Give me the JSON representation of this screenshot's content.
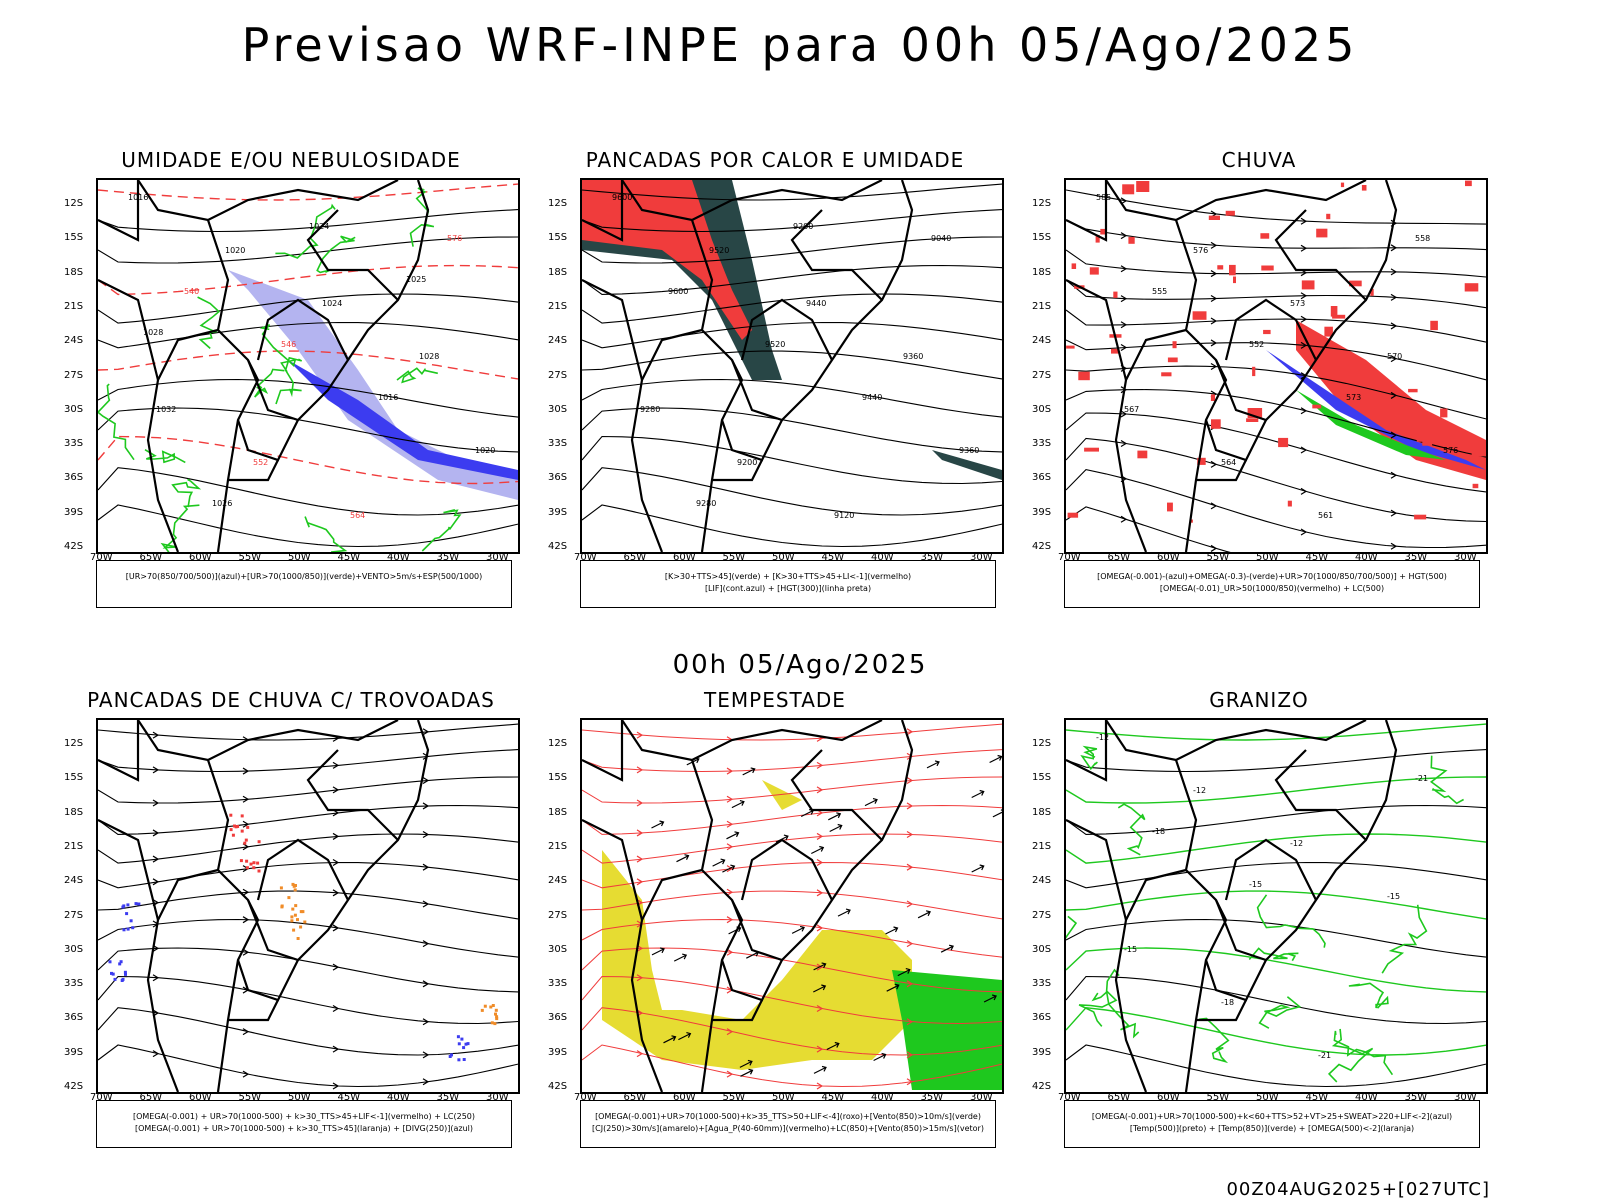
{
  "header": {
    "title": "Previsao WRF-INPE  para 00h 05/Ago/2025"
  },
  "subtitle": "00h 05/Ago/2025",
  "footer": "00Z04AUG2025+[027UTC]",
  "lat_labels": [
    "12S",
    "15S",
    "18S",
    "21S",
    "24S",
    "27S",
    "30S",
    "33S",
    "36S",
    "39S",
    "42S"
  ],
  "lon_labels": [
    "70W",
    "65W",
    "60W",
    "55W",
    "50W",
    "45W",
    "40W",
    "35W",
    "30W"
  ],
  "panels": [
    {
      "title": "UMIDADE E/OU NEBULOSIDADE",
      "legend": [
        "[UR>70(850/700/500)](azul)+[UR>70(1000/850)](verde)+VENTO>5m/s+ESP(500/1000)"
      ],
      "labels": [
        "1016",
        "1020",
        "1024",
        "1028",
        "1032",
        "552",
        "564",
        "576",
        "540",
        "546",
        "1016",
        "1020",
        "1026",
        "1024",
        "1025",
        "1028"
      ]
    },
    {
      "title": "PANCADAS POR CALOR E UMIDADE",
      "legend": [
        "[K>30+TTS>45](verde) + [K>30+TTS>45+LI<-1](vermelho)",
        "[LIF](cont.azul) + [HGT(300)](linha preta)"
      ],
      "labels": [
        "9600",
        "9520",
        "9440",
        "9360",
        "9280",
        "9200",
        "9120",
        "9040",
        "9600",
        "9520",
        "9440",
        "9360",
        "9280",
        "9200"
      ]
    },
    {
      "title": "CHUVA",
      "legend": [
        "[OMEGA(-0.001)-(azul)+OMEGA(-0.3)-(verde)+UR>70(1000/850/700/500)] + HGT(500)",
        "[OMEGA(-0.01)_UR>50(1000/850)(vermelho) + LC(500)"
      ],
      "labels": [
        "585",
        "576",
        "573",
        "570",
        "567",
        "564",
        "561",
        "558",
        "555",
        "552",
        "573",
        "576"
      ]
    },
    {
      "title": "PANCADAS DE CHUVA C/ TROVOADAS",
      "legend": [
        "[OMEGA(-0.001) + UR>70(1000-500) + k>30_TTS>45+LIF<-1](vermelho) + LC(250)",
        "[OMEGA(-0.001) + UR>70(1000-500) + k>30_TTS>45](laranja) + [DIVG(250)](azul)"
      ],
      "labels": []
    },
    {
      "title": "TEMPESTADE",
      "legend": [
        "[OMEGA(-0.001)+UR>70(1000-500)+k>35_TTS>50+LIF<-4](roxo)+[Vento(850)>10m/s](verde)",
        "[CJ(250)>30m/s](amarelo)+[Agua_P(40-60mm)](vermelho)+LC(850)+[Vento(850)>15m/s](vetor)"
      ],
      "labels": []
    },
    {
      "title": "GRANIZO",
      "legend": [
        "[OMEGA(-0.001)+UR>70(1000-500)+k<60+TTS>52+VT>25+SWEAT>220+LIF<-2](azul)",
        "[Temp(500)](preto) + [Temp(850)](verde) + [OMEGA(500)<-2](laranja)"
      ],
      "labels": [
        "-12",
        "-12",
        "-12",
        "-15",
        "-15",
        "-18",
        "-21",
        "-21",
        "-18",
        "-15"
      ]
    }
  ],
  "colors": {
    "red": "#f03c3c",
    "green": "#1ec81e",
    "blue": "#3c3cf0",
    "lightblue": "#b4b4f0",
    "darkteal": "#284646",
    "yellow": "#e6dc32",
    "orange": "#f08c28",
    "black": "#000000"
  }
}
